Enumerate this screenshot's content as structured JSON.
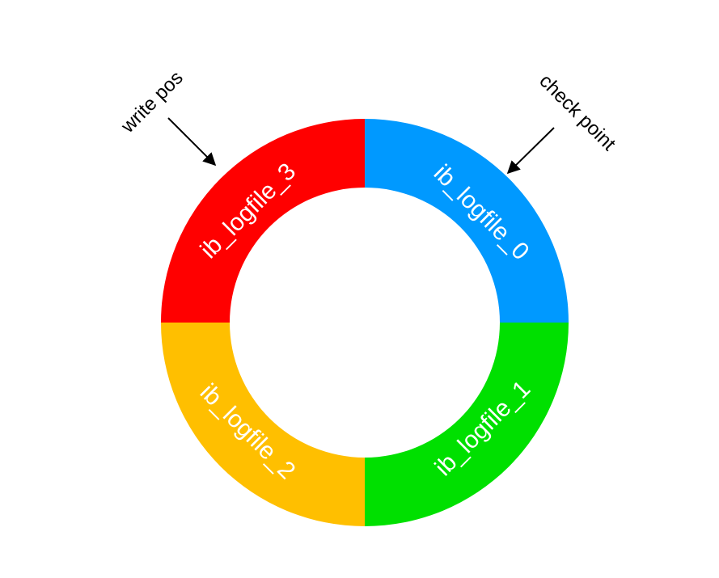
{
  "diagram": {
    "segments": [
      {
        "label": "ib_logfile_0",
        "color": "#0099ff"
      },
      {
        "label": "ib_logfile_1",
        "color": "#00e000"
      },
      {
        "label": "ib_logfile_2",
        "color": "#ffbf00"
      },
      {
        "label": "ib_logfile_3",
        "color": "#ff0000"
      }
    ],
    "callouts": {
      "write_pos": "write pos",
      "check_point": "check point"
    }
  }
}
